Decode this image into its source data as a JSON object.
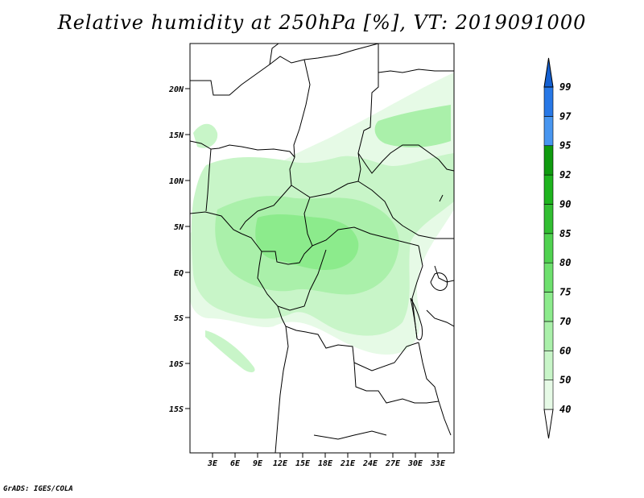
{
  "title": "Relative humidity at 250hPa [%], VT: 2019091000",
  "credit": "GrADS: IGES/COLA",
  "map": {
    "region": "Central Africa",
    "variable": "Relative humidity",
    "level": "250hPa",
    "units": "%",
    "valid_time": "2019091000",
    "lat_labels": [
      "20N",
      "15N",
      "10N",
      "5N",
      "EQ",
      "5S",
      "10S",
      "15S"
    ],
    "lon_labels": [
      "3E",
      "6E",
      "9E",
      "12E",
      "15E",
      "18E",
      "21E",
      "24E",
      "27E",
      "30E",
      "33E"
    ]
  },
  "legend": {
    "levels": [
      "40",
      "50",
      "60",
      "70",
      "75",
      "80",
      "85",
      "90",
      "92",
      "95",
      "97",
      "99"
    ],
    "colors": [
      "#ffffff",
      "#e6fae6",
      "#c8f5c8",
      "#aaf0aa",
      "#8ceb8c",
      "#6ee06e",
      "#50d250",
      "#32be32",
      "#1eb41e",
      "#0f9b0f",
      "#4896f0",
      "#2878e6",
      "#1460d2"
    ]
  }
}
